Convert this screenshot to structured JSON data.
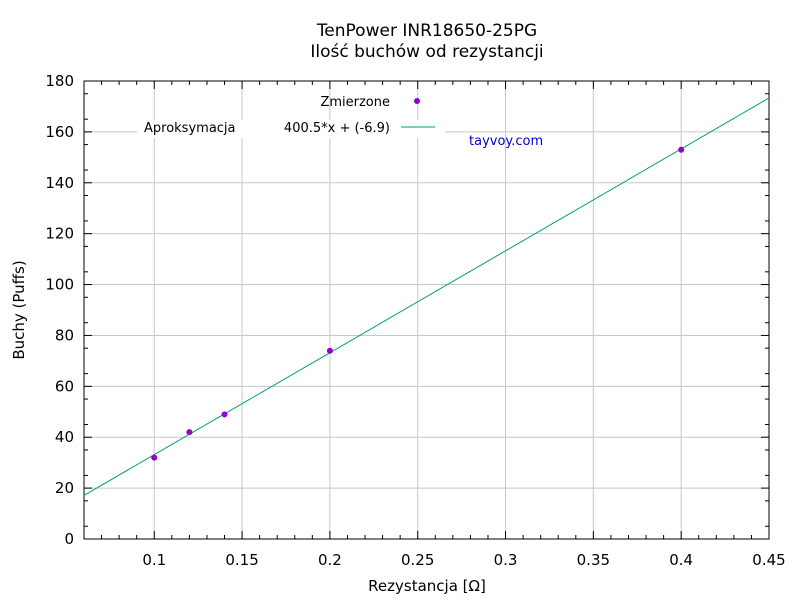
{
  "chart_data": {
    "type": "scatter",
    "title": "TenPower INR18650-25PG",
    "subtitle": "Ilość buchów od rezystancji",
    "xlabel": "Rezystancja [Ω]",
    "ylabel": "Buchy  (Puffs)",
    "xlim": [
      0.06,
      0.45
    ],
    "ylim": [
      0,
      180
    ],
    "xticks": [
      0.1,
      0.15,
      0.2,
      0.25,
      0.3,
      0.35,
      0.4,
      0.45
    ],
    "xtick_labels": [
      "0.1",
      "0.15",
      "0.2",
      "0.25",
      "0.3",
      "0.35",
      "0.4",
      "0.45"
    ],
    "yticks": [
      0,
      20,
      40,
      60,
      80,
      100,
      120,
      140,
      160,
      180
    ],
    "yticks_labels": [
      "0",
      "20",
      "40",
      "60",
      "80",
      "100",
      "120",
      "140",
      "160",
      "180"
    ],
    "grid": true,
    "legend_position": "top",
    "series": [
      {
        "name": "Zmierzone",
        "kind": "points",
        "color": "#9400d3",
        "x": [
          0.1,
          0.12,
          0.14,
          0.2,
          0.4
        ],
        "y": [
          32,
          42,
          49,
          74,
          153
        ]
      },
      {
        "name": "Aproksymacja",
        "kind": "line",
        "color": "#009e73",
        "formula": "400.5*x + (-6.9)",
        "slope": 400.5,
        "intercept": -6.9
      }
    ],
    "annotation": "tayvoy.com"
  }
}
